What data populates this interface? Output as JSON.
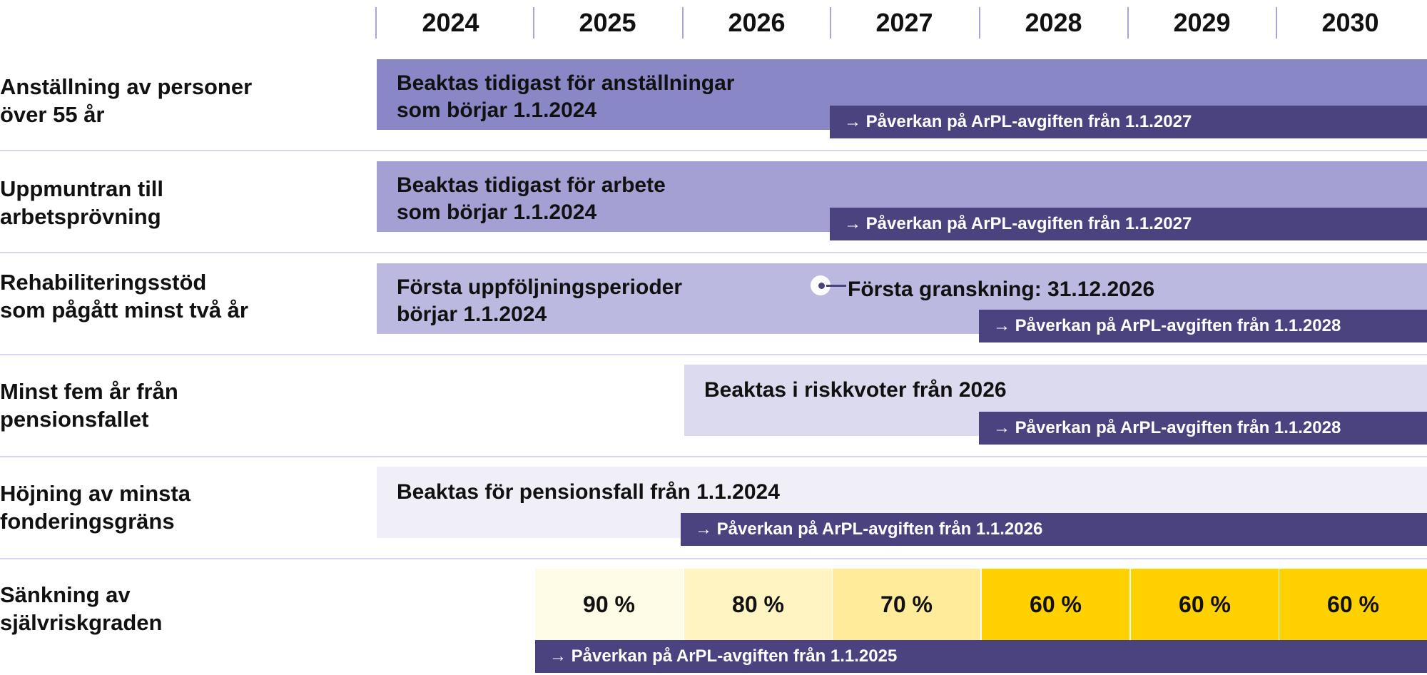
{
  "years": [
    "2024",
    "2025",
    "2026",
    "2027",
    "2028",
    "2029",
    "2030"
  ],
  "colors": {
    "row1": "#8a87c6",
    "row2": "#a4a0d3",
    "row3": "#bbb9e0",
    "row4": "#dcdaee",
    "row5": "#f0eff7",
    "arrow": "#4b4280",
    "pct90": "#fefbe6",
    "pct80": "#fff4c2",
    "pct70": "#ffeb99",
    "pct60": "#ffd100"
  },
  "rows": [
    {
      "label": [
        "Anställning av personer",
        "över 55 år"
      ],
      "text": [
        "Beaktas tidigast för anställningar",
        "som börjar 1.1.2024"
      ],
      "impact": "→ Påverkan på ArPL-avgiften från 1.1.2027"
    },
    {
      "label": [
        "Uppmuntran till",
        "arbetsprövning"
      ],
      "text": [
        "Beaktas tidigast för arbete",
        "som börjar 1.1.2024"
      ],
      "impact": "→ Påverkan på ArPL-avgiften från 1.1.2027"
    },
    {
      "label": [
        "Rehabiliteringsstöd",
        "som pågått minst två år"
      ],
      "text": [
        "Första uppföljningsperioder",
        "börjar 1.1.2024"
      ],
      "marker": "Första granskning: 31.12.2026",
      "impact": "→ Påverkan på ArPL-avgiften från 1.1.2028"
    },
    {
      "label": [
        "Minst fem år från",
        "pensionsfallet"
      ],
      "text": [
        "Beaktas i riskkvoter från 2026"
      ],
      "impact": "→ Påverkan på ArPL-avgiften från 1.1.2028"
    },
    {
      "label": [
        "Höjning av minsta",
        "fonderingsgräns"
      ],
      "text": [
        "Beaktas för pensionsfall från 1.1.2024"
      ],
      "impact": "→ Påverkan på ArPL-avgiften från 1.1.2026"
    },
    {
      "label": [
        "Sänkning av",
        "självriskgraden"
      ],
      "percentages": [
        "90 %",
        "80 %",
        "70 %",
        "60 %",
        "60 %",
        "60 %"
      ],
      "impact": "→ Påverkan på ArPL-avgiften från 1.1.2025"
    }
  ]
}
